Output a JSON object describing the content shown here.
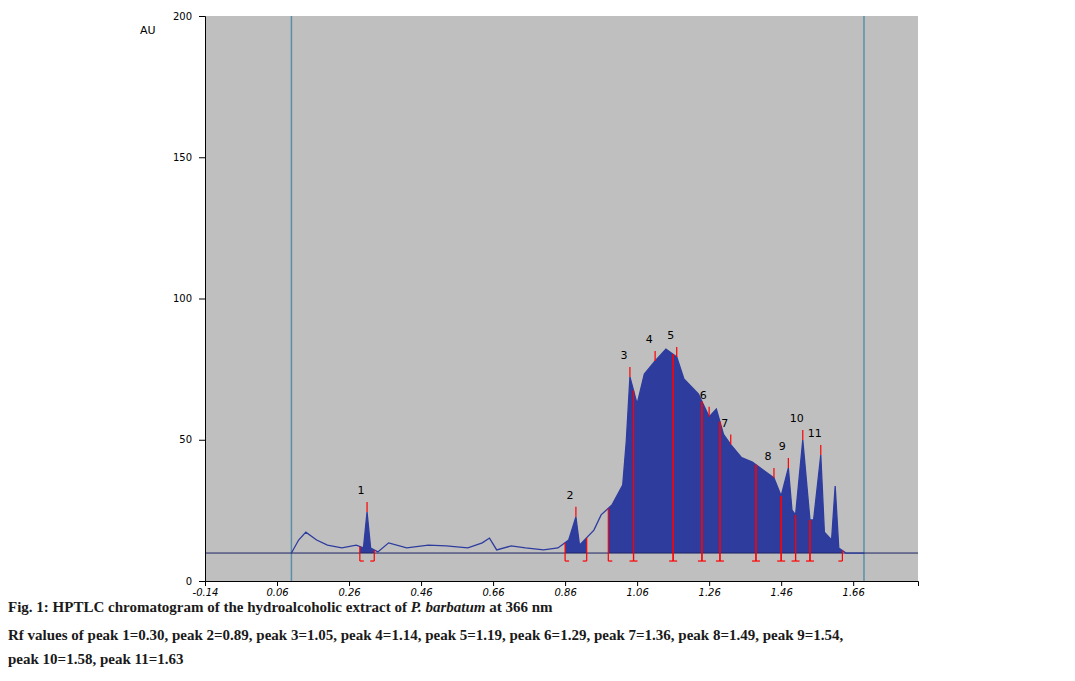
{
  "chart_data": {
    "type": "line",
    "title": [
      "Fig. 1: HPTLC chromatogram of the hydroalcoholic extract of ",
      "P. barbatum",
      " at 366 nm"
    ],
    "subtitle": [
      "Rf values of peak 1=0.30, peak 2=0.89, peak 3=1.05, peak 4=1.14, peak 5=1.19, peak 6=1.29, peak 7=1.36, peak 8=1.49, peak 9=1.54,",
      "peak 10=1.58, peak 11=1.63"
    ],
    "y_label": "AU",
    "x": [
      0.1,
      0.12,
      0.14,
      0.17,
      0.2,
      0.24,
      0.28,
      0.3,
      0.31,
      0.32,
      0.34,
      0.37,
      0.42,
      0.48,
      0.53,
      0.59,
      0.63,
      0.65,
      0.67,
      0.71,
      0.75,
      0.8,
      0.84,
      0.87,
      0.89,
      0.9,
      0.94,
      0.96,
      0.99,
      1.02,
      1.03,
      1.04,
      1.06,
      1.08,
      1.11,
      1.14,
      1.17,
      1.19,
      1.23,
      1.26,
      1.28,
      1.3,
      1.32,
      1.35,
      1.38,
      1.41,
      1.44,
      1.46,
      1.48,
      1.49,
      1.5,
      1.52,
      1.54,
      1.55,
      1.57,
      1.58,
      1.6,
      1.61,
      1.62,
      1.64,
      1.69
    ],
    "values": [
      9.9,
      14.5,
      17.3,
      14.5,
      12.7,
      11.7,
      12.7,
      11.7,
      24.4,
      11.7,
      10.3,
      13.5,
      11.7,
      12.7,
      12.4,
      11.7,
      13.5,
      15.2,
      11.0,
      12.4,
      11.7,
      11.0,
      11.7,
      14.5,
      22.7,
      12.7,
      18.0,
      23.4,
      26.9,
      34.0,
      49.6,
      72.2,
      62.7,
      73.3,
      77.9,
      82.1,
      79.3,
      71.5,
      66.2,
      58.1,
      60.9,
      51.9,
      48.3,
      43.7,
      42.1,
      39.3,
      36.5,
      30.1,
      40.0,
      25.1,
      23.4,
      49.9,
      21.6,
      21.6,
      44.6,
      17.3,
      14.5,
      33.6,
      11.7,
      9.9,
      9.9
    ],
    "color": "#2e3c9e",
    "baseline": 9.9,
    "start_line": 0.1,
    "end_line": 1.69,
    "peaks": [
      {
        "label": "1",
        "start": 0.29,
        "end": 0.33,
        "apex": 0.31
      },
      {
        "label": "2",
        "start": 0.86,
        "end": 0.92,
        "apex": 0.89
      },
      {
        "label": "3",
        "start": 0.98,
        "end": 1.05,
        "apex": 1.04
      },
      {
        "label": "4",
        "start": 1.05,
        "end": 1.16,
        "apex": 1.11
      },
      {
        "label": "5",
        "start": 1.16,
        "end": 1.24,
        "apex": 1.17
      },
      {
        "label": "6",
        "start": 1.24,
        "end": 1.29,
        "apex": 1.26
      },
      {
        "label": "7",
        "start": 1.29,
        "end": 1.39,
        "apex": 1.32
      },
      {
        "label": "8",
        "start": 1.39,
        "end": 1.46,
        "apex": 1.44
      },
      {
        "label": "9",
        "start": 1.46,
        "end": 1.5,
        "apex": 1.48
      },
      {
        "label": "10",
        "start": 1.5,
        "end": 1.54,
        "apex": 1.52
      },
      {
        "label": "11",
        "start": 1.54,
        "end": 1.63,
        "apex": 1.57
      }
    ],
    "xlim": [
      -0.14,
      1.84
    ],
    "xticks": [
      -0.14,
      0.06,
      0.26,
      0.46,
      0.66,
      0.86,
      1.06,
      1.26,
      1.46,
      1.66
    ],
    "ylim": [
      0,
      200
    ],
    "yticks": [
      0,
      50,
      100,
      150,
      200
    ],
    "grid": false
  }
}
